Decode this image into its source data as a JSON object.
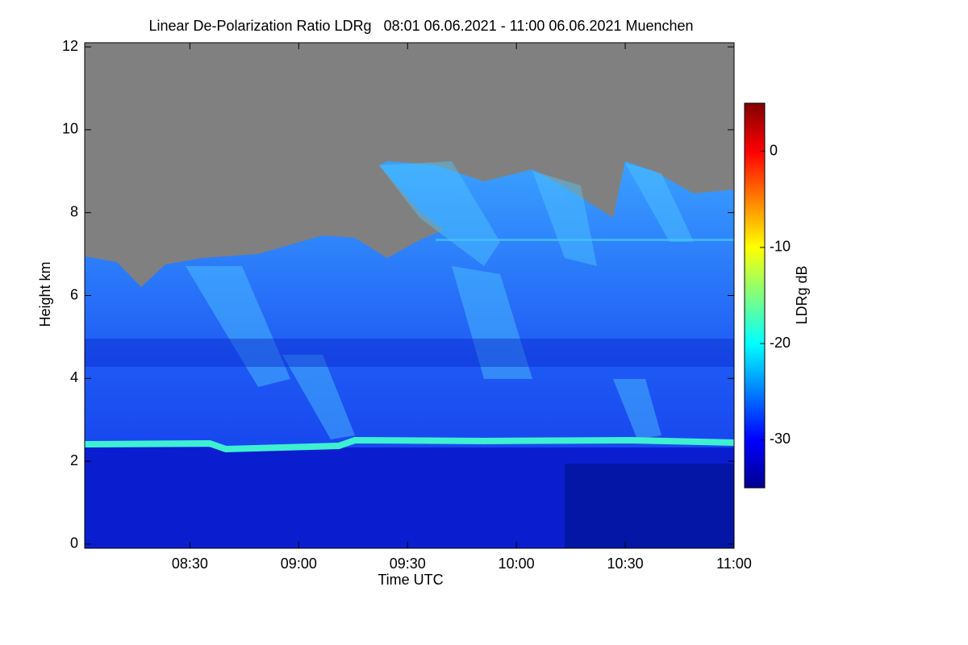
{
  "chart_data": {
    "type": "heatmap",
    "title": "Linear De-Polarization Ratio LDRg   08:01 06.06.2021 - 11:00 06.06.2021 Muenchen",
    "x_label": "Time UTC",
    "y_label": "Height km",
    "xlim": [
      "08:01",
      "11:00"
    ],
    "xticks": [
      "08:30",
      "09:00",
      "09:30",
      "10:00",
      "10:30",
      "11:00"
    ],
    "ylim": [
      -0.1,
      12.1
    ],
    "yticks": [
      0,
      2,
      4,
      6,
      8,
      10,
      12
    ],
    "colorbar": {
      "label": "LDRg dB",
      "lim": [
        -35,
        5
      ],
      "ticks": [
        0,
        -10,
        -20,
        -30
      ],
      "colormap": "jet"
    }
  }
}
